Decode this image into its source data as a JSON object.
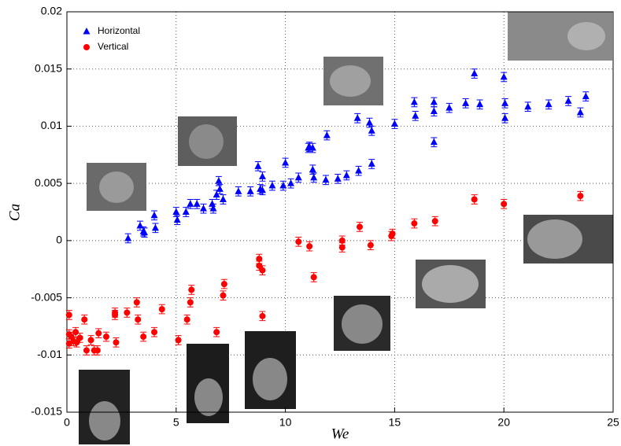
{
  "chart_data": {
    "type": "scatter",
    "x_label": "We",
    "y_label": "Ca",
    "xlim": [
      0,
      25
    ],
    "ylim": [
      -0.015,
      0.02
    ],
    "xticks": [
      0,
      5,
      10,
      15,
      20,
      25
    ],
    "yticks": [
      -0.015,
      -0.01,
      -0.005,
      0,
      0.005,
      0.01,
      0.015,
      0.02
    ],
    "grid": true,
    "legend": "upper left",
    "series": [
      {
        "name": "Horizontal",
        "color": "#0000ff",
        "marker": "triangle",
        "error": 0.0004,
        "x": [
          2.8,
          3.35,
          3.5,
          3.55,
          4.0,
          4.05,
          5.0,
          5.05,
          5.45,
          5.65,
          5.95,
          6.25,
          6.65,
          6.7,
          6.85,
          6.95,
          7.0,
          7.15,
          7.85,
          8.4,
          8.75,
          8.85,
          8.95,
          8.95,
          9.4,
          9.9,
          10.0,
          10.25,
          10.6,
          11.05,
          11.1,
          11.25,
          11.25,
          11.3,
          11.85,
          11.9,
          12.4,
          12.8,
          13.3,
          13.35,
          13.85,
          13.95,
          13.95,
          15.0,
          15.9,
          15.95,
          16.8,
          16.8,
          16.8,
          17.5,
          18.25,
          18.65,
          18.9,
          20.0,
          20.05,
          20.05,
          21.1,
          22.05,
          22.95,
          23.5,
          23.75
        ],
        "values": [
          0.0002,
          0.0013,
          0.0008,
          0.0007,
          0.0022,
          0.0011,
          0.0025,
          0.0018,
          0.0025,
          0.0032,
          0.0032,
          0.0028,
          0.0032,
          0.0028,
          0.004,
          0.0052,
          0.0045,
          0.0036,
          0.0043,
          0.0043,
          0.0065,
          0.0045,
          0.0056,
          0.0044,
          0.0048,
          0.0048,
          0.0068,
          0.005,
          0.0055,
          0.0081,
          0.0082,
          0.0081,
          0.0062,
          0.0055,
          0.0053,
          0.0092,
          0.0054,
          0.0057,
          0.0107,
          0.0061,
          0.0103,
          0.0096,
          0.0067,
          0.0102,
          0.0121,
          0.0109,
          0.0113,
          0.0121,
          0.0086,
          0.0116,
          0.012,
          0.0146,
          0.0119,
          0.0143,
          0.012,
          0.0107,
          0.0117,
          0.0119,
          0.0122,
          0.0112,
          0.0126
        ]
      },
      {
        "name": "Vertical",
        "color": "#ff0000",
        "marker": "circle",
        "error": 0.0004,
        "x": [
          0.1,
          0.1,
          0.1,
          0.2,
          0.3,
          0.4,
          0.45,
          0.6,
          0.8,
          0.9,
          1.1,
          1.25,
          1.4,
          1.45,
          1.8,
          2.2,
          2.2,
          2.25,
          2.75,
          3.2,
          3.25,
          3.5,
          4.0,
          4.35,
          5.1,
          5.5,
          5.65,
          5.7,
          6.85,
          7.15,
          7.2,
          8.8,
          8.8,
          8.95,
          8.95,
          10.6,
          11.1,
          11.3,
          12.6,
          12.6,
          13.4,
          13.9,
          14.85,
          14.9,
          15.9,
          16.85,
          18.65,
          20.0,
          23.5
        ],
        "values": [
          -0.0065,
          -0.0082,
          -0.009,
          -0.0084,
          -0.0088,
          -0.008,
          -0.0089,
          -0.0085,
          -0.0069,
          -0.0096,
          -0.0087,
          -0.0096,
          -0.0096,
          -0.0081,
          -0.0084,
          -0.0063,
          -0.0065,
          -0.0089,
          -0.0063,
          -0.0054,
          -0.0069,
          -0.0084,
          -0.008,
          -0.006,
          -0.0087,
          -0.0069,
          -0.0054,
          -0.0043,
          -0.008,
          -0.0048,
          -0.0038,
          -0.0016,
          -0.0022,
          -0.0026,
          -0.0066,
          -0.0001,
          -0.0005,
          -0.0032,
          0,
          -0.0006,
          0.0012,
          -0.0004,
          0.0004,
          0.0006,
          0.0015,
          0.0017,
          0.0036,
          0.0032,
          0.0039
        ]
      }
    ]
  }
}
